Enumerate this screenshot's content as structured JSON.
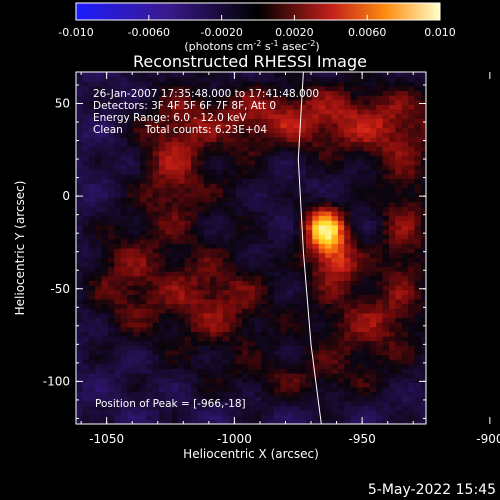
{
  "colorbar": {
    "ticks": [
      "-0.010",
      "-0.0060",
      "-0.0020",
      "0.0020",
      "0.0060",
      "0.010"
    ],
    "unit_parts": [
      "(photons cm",
      "-2",
      " s",
      "-1",
      " asec",
      "-2",
      ")"
    ]
  },
  "title": "Reconstructed RHESSI Image",
  "info": {
    "line1": "26-Jan-2007 17:35:48.000 to 17:41:48.000",
    "line2": "Detectors: 3F 4F 5F 6F 7F 8F, Att 0",
    "line3": "Energy Range: 6.0 - 12.0 keV",
    "line4_a": "Clean",
    "line4_b": "Total counts: 6.23E+04",
    "peak": "Position of Peak = [-966,-18]"
  },
  "axes": {
    "xlabel": "Heliocentric X (arcsec)",
    "ylabel": "Heliocentric Y (arcsec)",
    "xticks": [
      "-1050",
      "-1000",
      "-950",
      "-900"
    ],
    "yticks": [
      "-100",
      "-50",
      "0",
      "50"
    ]
  },
  "footer": {
    "date": "5-May-2022 15:45"
  },
  "chart_data": {
    "type": "heatmap",
    "title": "Reconstructed RHESSI Image",
    "xlabel": "Heliocentric X (arcsec)",
    "ylabel": "Heliocentric Y (arcsec)",
    "xlim": [
      -1062,
      -925
    ],
    "ylim": [
      -123,
      67
    ],
    "colorbar_range": [
      -0.01,
      0.01
    ],
    "colormap": "hot",
    "peak": [
      -966,
      -18
    ],
    "sources": [
      {
        "x": -966,
        "y": -18,
        "sx": 6,
        "sy": 9,
        "amp": 0.0095
      },
      {
        "x": -962,
        "y": -36,
        "sx": 7,
        "sy": 10,
        "amp": 0.006
      },
      {
        "x": -1025,
        "y": 15,
        "sx": 10,
        "sy": 28,
        "amp": 0.0048
      },
      {
        "x": -1010,
        "y": -58,
        "sx": 18,
        "sy": 20,
        "amp": 0.0045
      },
      {
        "x": -945,
        "y": 38,
        "sx": 22,
        "sy": 16,
        "amp": 0.0045
      },
      {
        "x": -950,
        "y": -70,
        "sx": 16,
        "sy": 16,
        "amp": 0.004
      },
      {
        "x": -935,
        "y": -20,
        "sx": 8,
        "sy": 30,
        "amp": 0.004
      },
      {
        "x": -1045,
        "y": -45,
        "sx": 10,
        "sy": 22,
        "amp": 0.0035
      },
      {
        "x": -990,
        "y": 42,
        "sx": 22,
        "sy": 12,
        "amp": 0.0045
      },
      {
        "x": -975,
        "y": -100,
        "sx": 25,
        "sy": 10,
        "amp": 0.0025
      },
      {
        "x": -1000,
        "y": 5,
        "sx": 8,
        "sy": 18,
        "amp": 0.0015
      }
    ],
    "limb_curve": [
      [
        -973,
        67
      ],
      [
        -975,
        20
      ],
      [
        -973,
        -30
      ],
      [
        -970,
        -80
      ],
      [
        -966,
        -123
      ]
    ]
  }
}
